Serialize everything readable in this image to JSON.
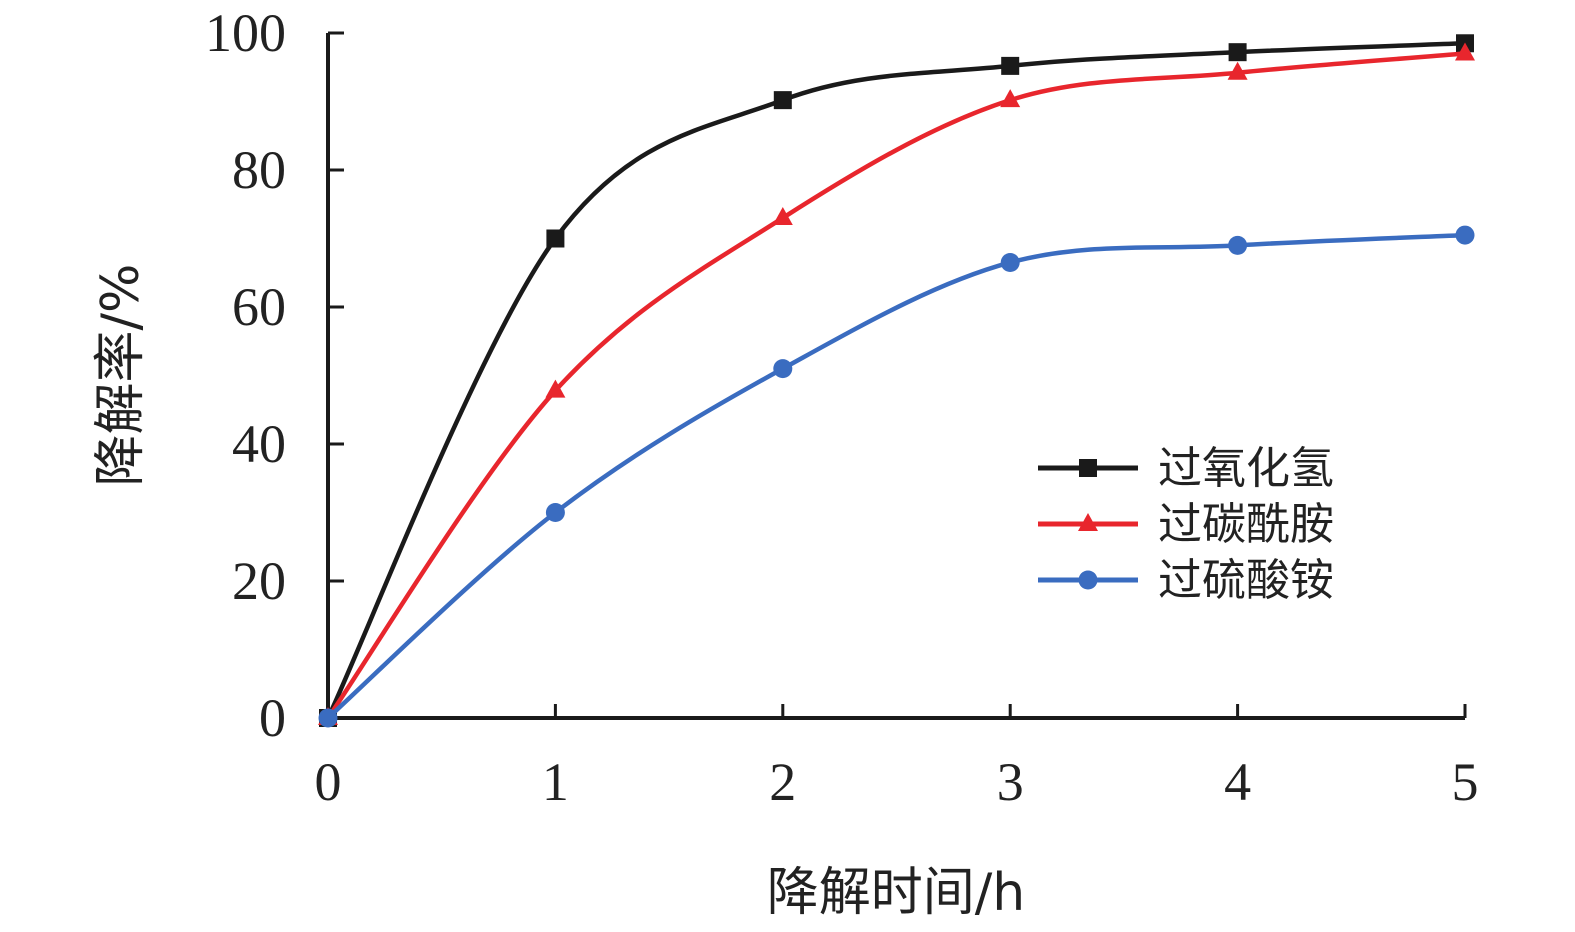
{
  "chart_data": {
    "type": "line",
    "title": "",
    "xlabel": "降解时间/h",
    "ylabel": "降解率/%",
    "x": [
      0,
      1,
      2,
      3,
      4,
      5
    ],
    "xlim": [
      0,
      5
    ],
    "ylim": [
      0,
      100
    ],
    "xticks": [
      "0",
      "1",
      "2",
      "3",
      "4",
      "5"
    ],
    "yticks": [
      "0",
      "20",
      "40",
      "60",
      "80",
      "100"
    ],
    "grid": false,
    "legend_position": "right",
    "series": [
      {
        "name": "过氧化氢",
        "values": [
          0,
          70,
          90.2,
          95.2,
          97.2,
          98.5
        ],
        "color": "#1a1a1a",
        "marker": "square"
      },
      {
        "name": "过碳酰胺",
        "values": [
          0,
          47.8,
          73,
          90.2,
          94.2,
          97
        ],
        "color": "#e8262d",
        "marker": "triangle"
      },
      {
        "name": "过硫酸铵",
        "values": [
          0,
          30,
          51,
          66.5,
          69,
          70.5
        ],
        "color": "#3a6cc0",
        "marker": "circle"
      }
    ]
  }
}
